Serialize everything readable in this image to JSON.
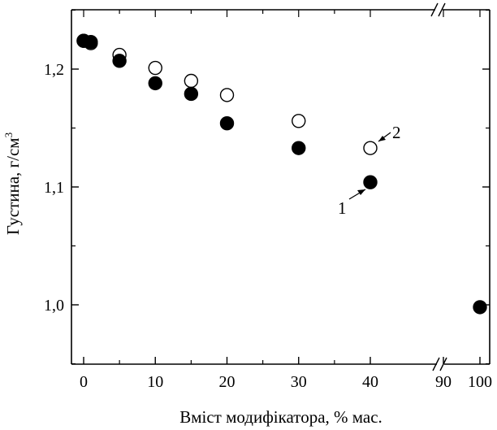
{
  "chart_data": {
    "type": "scatter",
    "xlabel": "Вміст модифікатора, % мас.",
    "ylabel": "Густина, г/см",
    "ylabel_superscript": "3",
    "x_ticks": [
      "0",
      "10",
      "20",
      "30",
      "40",
      "90",
      "100"
    ],
    "y_ticks": [
      "1,0",
      "1,1",
      "1,2"
    ],
    "x_axis_break": [
      40,
      90
    ],
    "ylim": [
      0.95,
      1.26
    ],
    "series": [
      {
        "name": "1",
        "marker": "filled-circle",
        "color": "#000000",
        "points": [
          {
            "x": 0,
            "y": 1.224
          },
          {
            "x": 1,
            "y": 1.223
          },
          {
            "x": 5,
            "y": 1.207
          },
          {
            "x": 10,
            "y": 1.188
          },
          {
            "x": 15,
            "y": 1.179
          },
          {
            "x": 20,
            "y": 1.154
          },
          {
            "x": 30,
            "y": 1.133
          },
          {
            "x": 40,
            "y": 1.104
          },
          {
            "x": 100,
            "y": 0.998
          }
        ]
      },
      {
        "name": "2",
        "marker": "open-circle",
        "color": "#000000",
        "points": [
          {
            "x": 0,
            "y": 1.224
          },
          {
            "x": 1,
            "y": 1.222
          },
          {
            "x": 5,
            "y": 1.212
          },
          {
            "x": 10,
            "y": 1.201
          },
          {
            "x": 15,
            "y": 1.19
          },
          {
            "x": 20,
            "y": 1.178
          },
          {
            "x": 30,
            "y": 1.156
          },
          {
            "x": 40,
            "y": 1.133
          }
        ]
      }
    ]
  }
}
